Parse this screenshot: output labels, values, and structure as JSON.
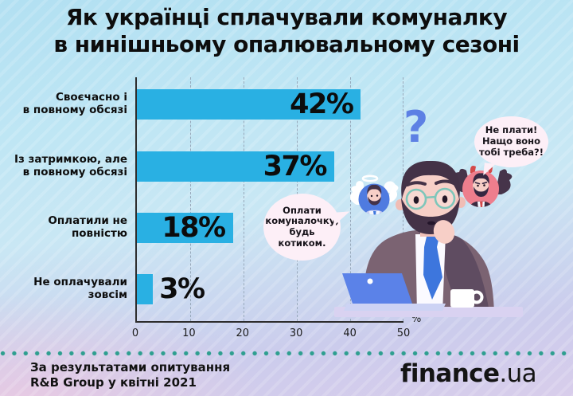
{
  "title": {
    "line1": "Як українці сплачували комуналку",
    "line2": "в нинішньому опалювальному сезоні"
  },
  "chart_data": {
    "type": "bar",
    "orientation": "horizontal",
    "title": "Як українці сплачували комуналку в нинішньому опалювальному сезоні",
    "categories": [
      [
        "Своєчасно і",
        "в повному обсязі"
      ],
      [
        "Із затримкою, але",
        "в повному обсязі"
      ],
      [
        "Оплатили не",
        "повністю"
      ],
      [
        "Не оплачували",
        "зовсім"
      ]
    ],
    "values": [
      42,
      37,
      18,
      3
    ],
    "value_labels": [
      "42%",
      "37%",
      "18%",
      "3%"
    ],
    "x_ticks": [
      "0",
      "10",
      "20",
      "30",
      "40",
      "50"
    ],
    "x_unit": "%",
    "xlim": [
      0,
      50
    ],
    "bar_color": "#29b0e3",
    "grid": "vertical-dashed",
    "legend": "none"
  },
  "illustration": {
    "question_mark": "?",
    "bubble_left_lines": [
      "Оплати",
      "комуналочку,",
      "будь",
      "котиком."
    ],
    "bubble_right_lines": [
      "Не плати!",
      "Нащо воно",
      "тобі треба?!"
    ]
  },
  "footer": {
    "source_line1": "За результатами опитування",
    "source_line2": "R&B Group у квітні 2021",
    "logo_text": "finance",
    "logo_suffix": ".ua"
  },
  "colors": {
    "bar": "#29b0e3",
    "divider_dots": "#2f9f90",
    "question_mark": "#5d80e4",
    "speech_bubble": "#fdeff7",
    "background_top": "#b2e0f2",
    "background_bottom": "#d8cdeb"
  }
}
